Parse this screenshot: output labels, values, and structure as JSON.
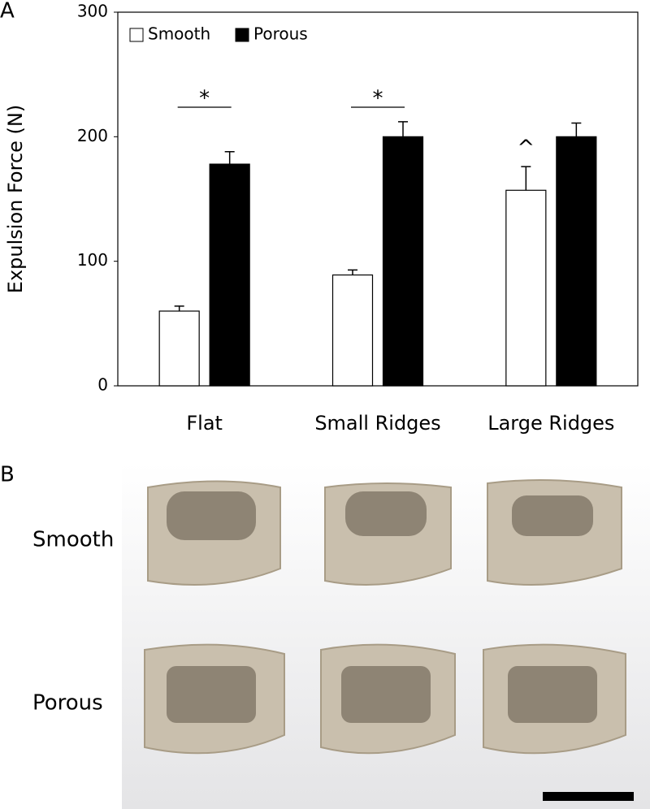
{
  "chart_data": {
    "type": "bar",
    "panel_label": "A",
    "y_label": "Expulsion Force (N)",
    "categories": [
      "Flat",
      "Small Ridges",
      "Large Ridges"
    ],
    "series": [
      {
        "name": "Smooth",
        "color": "#ffffff",
        "values": [
          60,
          89,
          157
        ],
        "errors": [
          4,
          4,
          19
        ]
      },
      {
        "name": "Porous",
        "color": "#000000",
        "values": [
          178,
          200,
          200
        ],
        "errors": [
          10,
          12,
          11
        ]
      }
    ],
    "ylim": [
      0,
      300
    ],
    "yticks": [
      0,
      100,
      200,
      300
    ],
    "legend": "upper left",
    "annotations": [
      "*",
      "*",
      "^"
    ]
  },
  "panel_b": {
    "label": "B",
    "rows": [
      "Smooth",
      "Porous"
    ]
  }
}
